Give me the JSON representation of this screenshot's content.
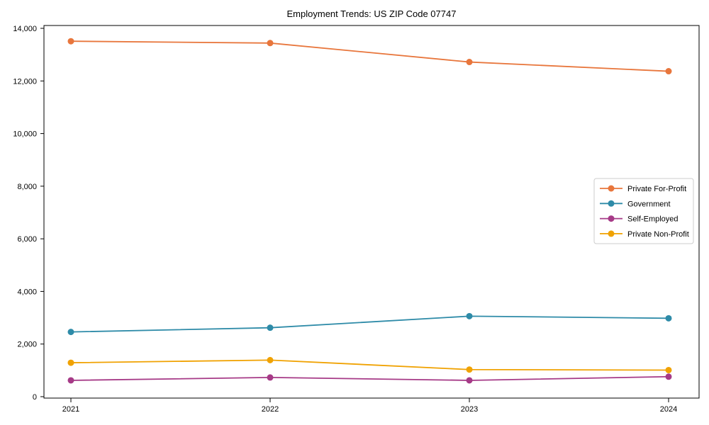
{
  "chart_data": {
    "type": "line",
    "title": "Employment Trends: US ZIP Code 07747",
    "xlabel": "",
    "ylabel": "",
    "categories": [
      "2021",
      "2022",
      "2023",
      "2024"
    ],
    "yticks": [
      0,
      2000,
      4000,
      6000,
      8000,
      10000,
      12000,
      14000
    ],
    "ytick_labels": [
      "0",
      "2,000",
      "4,000",
      "6,000",
      "8,000",
      "10,000",
      "12,000",
      "14,000"
    ],
    "ylim": [
      0,
      14000
    ],
    "grid": false,
    "legend_position": "center right",
    "marker": "circle",
    "series": [
      {
        "name": "Private For-Profit",
        "color": "#e8763c",
        "values": [
          13510,
          13440,
          12720,
          12370
        ]
      },
      {
        "name": "Government",
        "color": "#2e8ba8",
        "values": [
          2460,
          2620,
          3060,
          2980
        ]
      },
      {
        "name": "Self-Employed",
        "color": "#a63a87",
        "values": [
          620,
          730,
          620,
          760
        ]
      },
      {
        "name": "Private Non-Profit",
        "color": "#f0a202",
        "values": [
          1290,
          1390,
          1030,
          1010
        ]
      }
    ],
    "axis_color": "#000000",
    "text_color": "#000000",
    "legend_border_color": "#cccccc",
    "background_color": "#ffffff"
  }
}
